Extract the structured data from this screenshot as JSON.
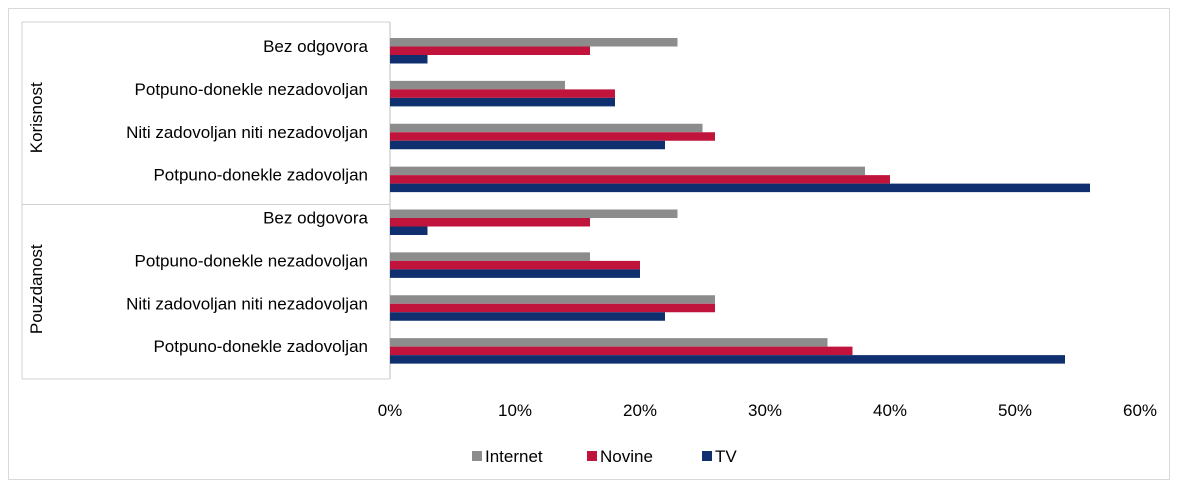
{
  "chart_data": {
    "type": "bar",
    "orientation": "horizontal",
    "groups": [
      {
        "label": "Korisnost",
        "categories": [
          "Bez odgovora",
          "Potpuno-donekle nezadovoljan",
          "Niti zadovoljan niti nezadovoljan",
          "Potpuno-donekle zadovoljan"
        ]
      },
      {
        "label": "Pouzdanost",
        "categories": [
          "Bez odgovora",
          "Potpuno-donekle nezadovoljan",
          "Niti zadovoljan niti nezadovoljan",
          "Potpuno-donekle zadovoljan"
        ]
      }
    ],
    "series": [
      {
        "name": "Internet",
        "color": "#8c8c8c",
        "values": [
          [
            23,
            14,
            25,
            38
          ],
          [
            23,
            16,
            26,
            35
          ]
        ]
      },
      {
        "name": "Novine",
        "color": "#c0143c",
        "values": [
          [
            16,
            18,
            26,
            40
          ],
          [
            16,
            20,
            26,
            37
          ]
        ]
      },
      {
        "name": "TV",
        "color": "#0f2f6e",
        "values": [
          [
            3,
            18,
            22,
            56
          ],
          [
            3,
            20,
            22,
            54
          ]
        ]
      }
    ],
    "xlim": [
      0,
      60
    ],
    "xticks": [
      "0%",
      "10%",
      "20%",
      "30%",
      "40%",
      "50%",
      "60%"
    ],
    "grid": false,
    "legend": "bottom-center"
  }
}
